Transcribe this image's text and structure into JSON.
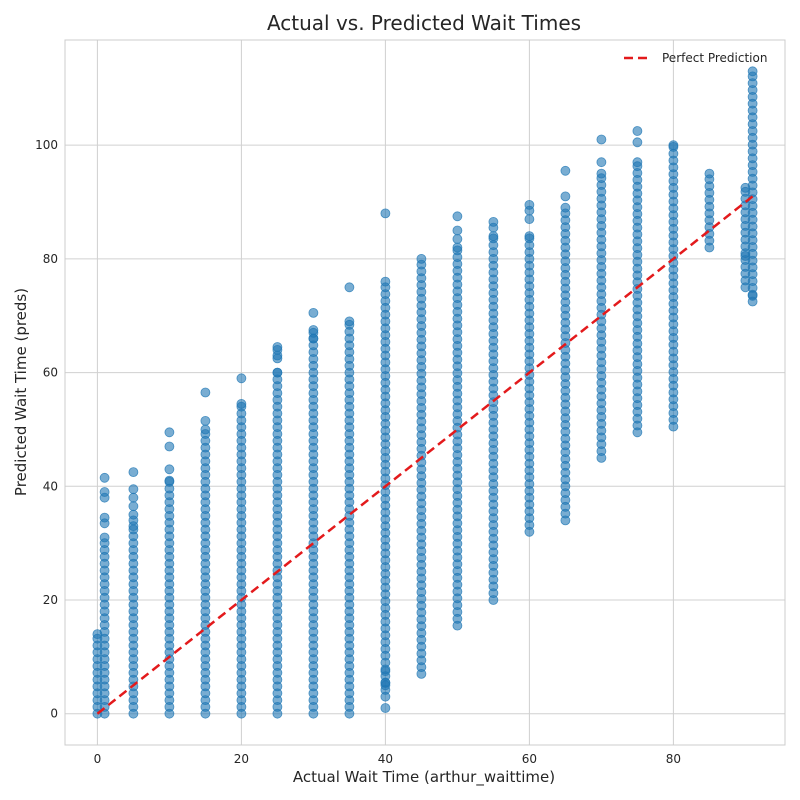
{
  "chart_data": {
    "type": "scatter",
    "title": "Actual vs. Predicted Wait Times",
    "xlabel": "Actual Wait Time (arthur_waittime)",
    "ylabel": "Predicted Wait Time (preds)",
    "xlim": [
      -4.5,
      95.5
    ],
    "ylim": [
      -5.5,
      118.5
    ],
    "x_ticks": [
      0,
      20,
      40,
      60,
      80
    ],
    "y_ticks": [
      0,
      20,
      40,
      60,
      80,
      100
    ],
    "grid": true,
    "legend": {
      "placement": "top-right",
      "entries": [
        "Perfect Prediction"
      ]
    },
    "colors": {
      "points": "#1f77b4",
      "reference_line": "#e31a1c",
      "grid": "#d0d0d0",
      "frame": "#cccccc"
    },
    "reference_line": {
      "name": "Perfect Prediction",
      "x": [
        0,
        91
      ],
      "y": [
        0,
        91
      ],
      "style": "dashed"
    },
    "series": [
      {
        "name": "",
        "columns": [
          {
            "x": 0,
            "min": 0,
            "max": 14,
            "outliers": []
          },
          {
            "x": 1,
            "min": 0,
            "max": 31,
            "outliers": [
              33.5,
              34.5,
              38,
              39,
              41.5
            ]
          },
          {
            "x": 5,
            "min": 0,
            "max": 33,
            "outliers": [
              34,
              35,
              36.5,
              38,
              39.5,
              42.5
            ]
          },
          {
            "x": 10,
            "min": 0,
            "max": 41,
            "outliers": [
              43,
              47,
              49.5
            ]
          },
          {
            "x": 15,
            "min": 0,
            "max": 50,
            "outliers": [
              51.5,
              56.5
            ]
          },
          {
            "x": 20,
            "min": 0,
            "max": 54.5,
            "outliers": [
              59
            ]
          },
          {
            "x": 25,
            "min": 0,
            "max": 60,
            "outliers": [
              62.5,
              63,
              64,
              64.5
            ]
          },
          {
            "x": 30,
            "min": 0,
            "max": 66,
            "outliers": [
              67,
              67.5,
              70.5
            ]
          },
          {
            "x": 35,
            "min": 0,
            "max": 69,
            "outliers": [
              75
            ]
          },
          {
            "x": 40,
            "min": 3,
            "max": 76,
            "outliers": [
              1,
              5,
              5.5,
              7.5,
              88
            ]
          },
          {
            "x": 45,
            "min": 7,
            "max": 80,
            "outliers": []
          },
          {
            "x": 50,
            "min": 15.5,
            "max": 82,
            "outliers": [
              83.5,
              85,
              87.5
            ]
          },
          {
            "x": 55,
            "min": 20,
            "max": 84,
            "outliers": [
              85.5,
              86.5
            ]
          },
          {
            "x": 60,
            "min": 32,
            "max": 84,
            "outliers": [
              87,
              88.5,
              89.5
            ]
          },
          {
            "x": 65,
            "min": 34,
            "max": 89,
            "outliers": [
              91,
              95.5
            ]
          },
          {
            "x": 70,
            "min": 45,
            "max": 95,
            "outliers": [
              97,
              101
            ]
          },
          {
            "x": 75,
            "min": 49.5,
            "max": 97,
            "outliers": [
              100.5,
              102.5
            ]
          },
          {
            "x": 80,
            "min": 50.5,
            "max": 100,
            "outliers": []
          },
          {
            "x": 85,
            "min": 82,
            "max": 95,
            "outliers": []
          },
          {
            "x": 90,
            "min": 75,
            "max": 92.5,
            "outliers": [
              80.5
            ]
          },
          {
            "x": 91,
            "min": 72.5,
            "max": 113,
            "outliers": [
              73.5
            ]
          }
        ]
      }
    ]
  }
}
